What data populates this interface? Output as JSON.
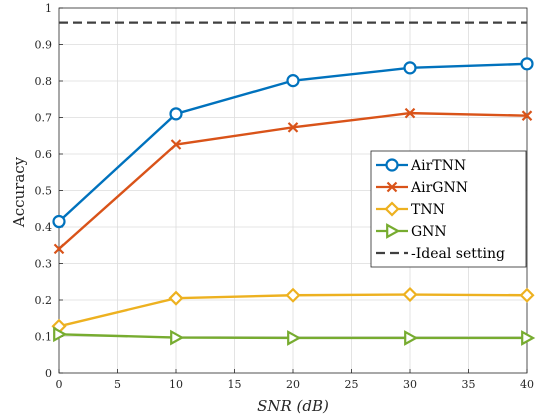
{
  "chart_data": {
    "type": "line",
    "title": "",
    "xlabel": "SNR (dB)",
    "ylabel": "Accuracy",
    "xlim": [
      0,
      40
    ],
    "ylim": [
      0,
      1
    ],
    "xticks": [
      0,
      5,
      10,
      15,
      20,
      25,
      30,
      35,
      40
    ],
    "yticks": [
      0,
      0.1,
      0.2,
      0.3,
      0.4,
      0.5,
      0.6,
      0.7,
      0.8,
      0.9,
      1
    ],
    "xtick_labels": [
      "0",
      "5",
      "10",
      "15",
      "20",
      "25",
      "30",
      "35",
      "40"
    ],
    "ytick_labels": [
      "0",
      "0.1",
      "0.2",
      "0.3",
      "0.4",
      "0.5",
      "0.6",
      "0.7",
      "0.8",
      "0.9",
      "1"
    ],
    "grid": true,
    "legend_position": "right-middle",
    "x": [
      0,
      10,
      20,
      30,
      40
    ],
    "series": [
      {
        "name": "AirTNN",
        "color": "#0072BD",
        "marker": "circle",
        "values": [
          0.415,
          0.71,
          0.801,
          0.836,
          0.847
        ]
      },
      {
        "name": "AirGNN",
        "color": "#D95319",
        "marker": "x",
        "values": [
          0.34,
          0.626,
          0.673,
          0.712,
          0.705
        ]
      },
      {
        "name": "TNN",
        "color": "#EDB120",
        "marker": "diamond",
        "values": [
          0.128,
          0.205,
          0.213,
          0.215,
          0.213
        ]
      },
      {
        "name": "GNN",
        "color": "#77AC30",
        "marker": "triangle-right",
        "values": [
          0.106,
          0.097,
          0.096,
          0.096,
          0.096
        ]
      }
    ],
    "reference_lines": [
      {
        "name": "Ideal setting",
        "color": "#404040",
        "style": "dashed",
        "y": 0.96
      }
    ]
  }
}
